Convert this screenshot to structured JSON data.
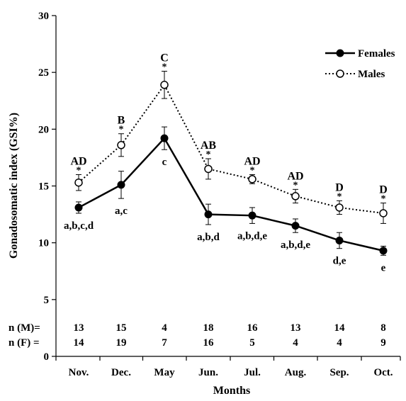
{
  "chart_data": {
    "type": "line",
    "ylabel": "Gonadosomatic index (GSI%)",
    "xlabel": "Months",
    "ylim": [
      0,
      30
    ],
    "yticks": [
      0,
      5,
      10,
      15,
      20,
      25,
      30
    ],
    "categories": [
      "Nov.",
      "Dec.",
      "May",
      "Jun.",
      "Jul.",
      "Aug.",
      "Sep.",
      "Oct."
    ],
    "legend": {
      "placement": "top-right",
      "entries": [
        "Females",
        "Males"
      ]
    },
    "series": [
      {
        "name": "Females",
        "style": "solid line, filled circle markers",
        "values": [
          13.1,
          15.1,
          19.2,
          12.5,
          12.4,
          11.5,
          10.2,
          9.3
        ],
        "errors": [
          0.5,
          1.2,
          1.0,
          0.9,
          0.7,
          0.6,
          0.7,
          0.4
        ],
        "labels": [
          "a,b,c,d",
          "a,c",
          "c",
          "a,b,d",
          "a,b,d,e",
          "a,b,d,e",
          "d,e",
          "e"
        ]
      },
      {
        "name": "Males",
        "style": "dotted line, open circle markers",
        "values": [
          15.3,
          18.6,
          23.9,
          16.5,
          15.6,
          14.1,
          13.1,
          12.6
        ],
        "errors": [
          0.7,
          1.0,
          1.2,
          0.9,
          0.4,
          0.6,
          0.6,
          0.9
        ],
        "labels": [
          "AD",
          "B",
          "C",
          "AB",
          "AD",
          "AD",
          "D",
          "D"
        ],
        "significance_marker": "*"
      }
    ],
    "sample_sizes": {
      "males_label": "n (M)=",
      "females_label": "n (F) =",
      "males": [
        "13",
        "15",
        "4",
        "18",
        "16",
        "13",
        "14",
        "8"
      ],
      "females": [
        "14",
        "19",
        "7",
        "16",
        "5",
        "4",
        "4",
        "9"
      ]
    }
  }
}
